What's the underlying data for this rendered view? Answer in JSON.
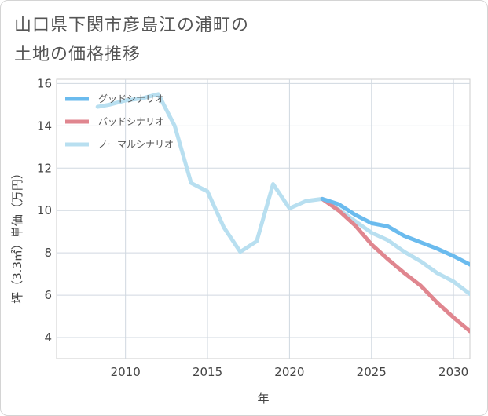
{
  "title_lines": [
    "山口県下関市彦島江の浦町の",
    "土地の価格推移"
  ],
  "chart_data": {
    "type": "line",
    "title": "山口県下関市彦島江の浦町の土地の価格推移",
    "xlabel": "年",
    "ylabel": "坪（3.3㎡）単価（万円）",
    "xlim": [
      2005.8,
      2031
    ],
    "ylim": [
      3.0,
      16.2
    ],
    "xticks": [
      2010,
      2015,
      2020,
      2025,
      2030
    ],
    "yticks": [
      4,
      6,
      8,
      10,
      12,
      14,
      16
    ],
    "grid": true,
    "legend_position": "top-left",
    "series": [
      {
        "name": "グッドシナリオ",
        "color": "#6bbbee",
        "x": [
          2022,
          2023,
          2024,
          2025,
          2026,
          2027,
          2028,
          2029,
          2030,
          2031
        ],
        "y": [
          10.55,
          10.3,
          9.8,
          9.4,
          9.25,
          8.8,
          8.5,
          8.2,
          7.85,
          7.45
        ]
      },
      {
        "name": "バッドシナリオ",
        "color": "#e0868f",
        "x": [
          2022,
          2023,
          2024,
          2025,
          2026,
          2027,
          2028,
          2029,
          2030,
          2031
        ],
        "y": [
          10.55,
          10.0,
          9.3,
          8.4,
          7.7,
          7.05,
          6.45,
          5.65,
          4.95,
          4.3
        ]
      },
      {
        "name": "ノーマルシナリオ",
        "color": "#b8dff0",
        "x": [
          2008.3,
          2009,
          2010,
          2011,
          2012,
          2013,
          2014,
          2015,
          2016,
          2017,
          2018,
          2019,
          2020,
          2021,
          2022,
          2023,
          2024,
          2025,
          2026,
          2027,
          2028,
          2029,
          2030,
          2031
        ],
        "y": [
          14.9,
          15.0,
          15.2,
          15.3,
          15.5,
          14.0,
          11.3,
          10.9,
          9.2,
          8.05,
          8.55,
          11.25,
          10.1,
          10.45,
          10.55,
          10.05,
          9.5,
          8.95,
          8.6,
          8.05,
          7.6,
          7.05,
          6.65,
          6.05
        ]
      }
    ]
  }
}
